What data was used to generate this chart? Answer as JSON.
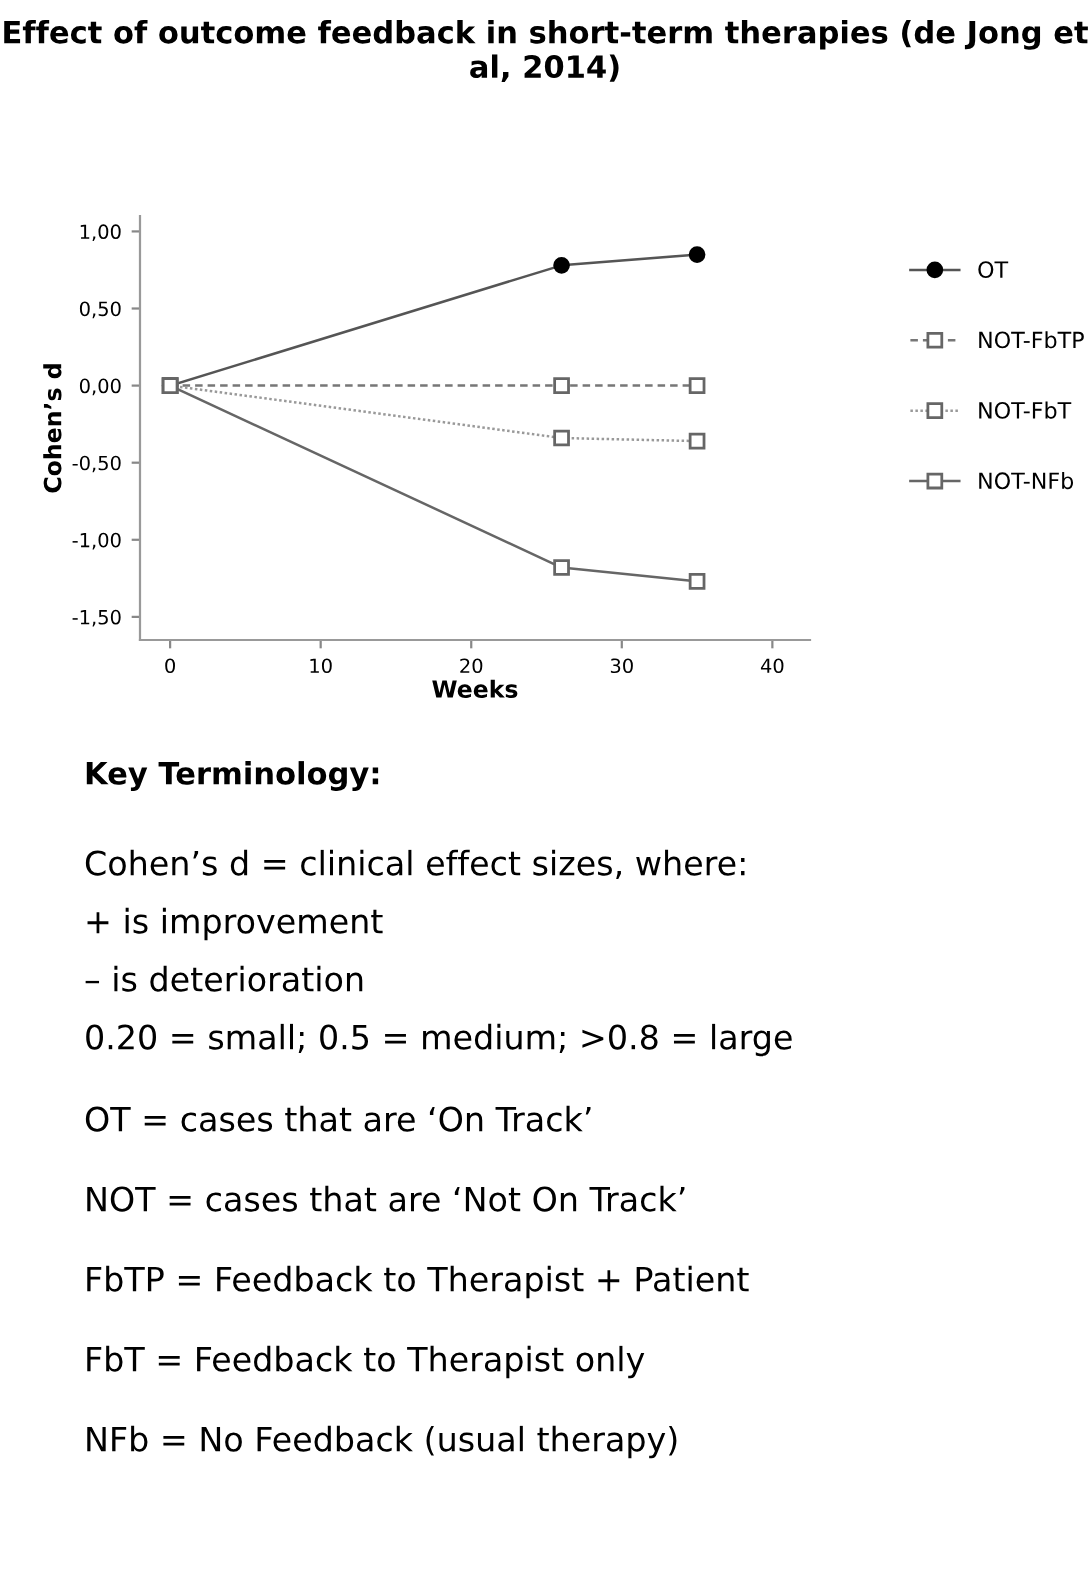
{
  "chart_data": {
    "type": "line",
    "title": "Effect of outcome feedback in short-term therapies (de Jong et al, 2014)",
    "xlabel": "Weeks",
    "ylabel": "Cohen’s d",
    "x": [
      0,
      26,
      35
    ],
    "series": [
      {
        "name": "OT",
        "color": "#555555",
        "values": [
          0,
          0.78,
          0.85
        ],
        "marker": "circle",
        "line_style": "solid"
      },
      {
        "name": "NOT-FbTP",
        "color": "#777777",
        "values": [
          0,
          0,
          0
        ],
        "marker": "square",
        "line_style": "dashed"
      },
      {
        "name": "NOT-FbT",
        "color": "#999999",
        "values": [
          0,
          -0.34,
          -0.36
        ],
        "marker": "square",
        "line_style": "dotted"
      },
      {
        "name": "NOT-NFb",
        "color": "#666666",
        "values": [
          0,
          -1.18,
          -1.27
        ],
        "marker": "square",
        "line_style": "solid"
      }
    ],
    "xlim": [
      -2,
      42.5
    ],
    "xticks": [
      0,
      10,
      20,
      30,
      40
    ],
    "ylim": [
      -1.65,
      1.1
    ],
    "yticks": [
      {
        "value": -1.5,
        "label": "-1,50"
      },
      {
        "value": -1,
        "label": "-1,00"
      },
      {
        "value": -0.5,
        "label": "-0,50"
      },
      {
        "value": 0,
        "label": "0,00"
      },
      {
        "value": 0.5,
        "label": "0,50"
      },
      {
        "value": 1,
        "label": "1,00"
      }
    ],
    "grid": false,
    "legend": "right",
    "annotations": [
      "Key Terminology:",
      "Cohen’s d = clinical effect sizes, where:",
      "+ is improvement",
      "– is deterioration",
      "0.20 = small; 0.5 = medium; >0.8 = large",
      "OT = cases that are ‘On Track’",
      "NOT = cases that are ‘Not On Track’",
      "FbTP = Feedback to Therapist + Patient",
      "FbT = Feedback to Therapist only",
      "NFb = No Feedback (usual therapy)"
    ]
  }
}
